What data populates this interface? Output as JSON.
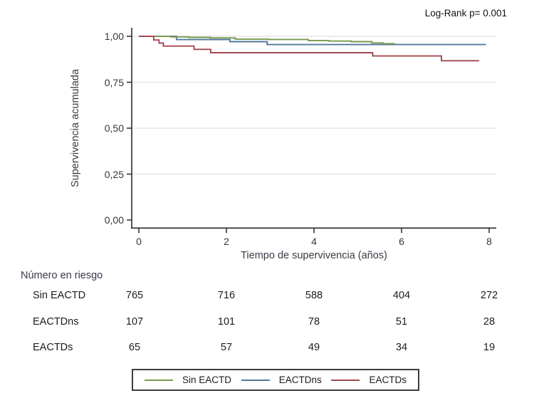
{
  "annotation": {
    "log_rank": "Log-Rank p= 0.001"
  },
  "chart_data": {
    "type": "line",
    "subtype": "kaplan-meier-step",
    "xlabel": "Tiempo de supervivencia (años)",
    "ylabel": "Supervivencia acumulada",
    "xlim": [
      0,
      8.2
    ],
    "ylim": [
      0,
      1.04
    ],
    "grid": "horizontal",
    "x_ticks": [
      {
        "label": "0",
        "v": 0
      },
      {
        "label": "2",
        "v": 2
      },
      {
        "label": "4",
        "v": 4
      },
      {
        "label": "6",
        "v": 6
      },
      {
        "label": "8",
        "v": 8
      }
    ],
    "y_ticks": [
      {
        "label": "1,00",
        "v": 1.0
      },
      {
        "label": "0,75",
        "v": 0.75
      },
      {
        "label": "0,50",
        "v": 0.5
      },
      {
        "label": "0,25",
        "v": 0.25
      },
      {
        "label": "0,00",
        "v": 0.0
      }
    ],
    "series": [
      {
        "name": "EACTDns",
        "color": "#54789B",
        "points": [
          [
            0,
            1.0
          ],
          [
            0.86,
            0.982
          ],
          [
            2.08,
            0.971
          ],
          [
            2.93,
            0.955
          ],
          [
            7.93,
            0.955
          ]
        ]
      },
      {
        "name": "Sin EACTD",
        "color": "#78994F",
        "points": [
          [
            0,
            1.0
          ],
          [
            0.73,
            0.997
          ],
          [
            1.14,
            0.994
          ],
          [
            1.63,
            0.991
          ],
          [
            2.2,
            0.985
          ],
          [
            2.95,
            0.983
          ],
          [
            3.87,
            0.977
          ],
          [
            4.34,
            0.974
          ],
          [
            4.85,
            0.971
          ],
          [
            5.32,
            0.964
          ],
          [
            5.58,
            0.96
          ],
          [
            5.85,
            0.96
          ]
        ]
      },
      {
        "name": "EACTDs",
        "color": "#A3484F",
        "points": [
          [
            0,
            1.0
          ],
          [
            0.34,
            0.98
          ],
          [
            0.46,
            0.963
          ],
          [
            0.56,
            0.947
          ],
          [
            1.26,
            0.929
          ],
          [
            1.64,
            0.911
          ],
          [
            5.34,
            0.893
          ],
          [
            6.91,
            0.867
          ],
          [
            7.77,
            0.867
          ]
        ]
      }
    ],
    "legend": {
      "position": "bottom",
      "entries": [
        {
          "label": "Sin EACTD",
          "color": "#78994F"
        },
        {
          "label": "EACTDns",
          "color": "#54789B"
        },
        {
          "label": "EACTDs",
          "color": "#A3484F"
        }
      ]
    },
    "risk_table": {
      "title": "Número en riesgo",
      "time_points": [
        0,
        2,
        4,
        6,
        8
      ],
      "rows": [
        {
          "label": "Sin EACTD",
          "values": [
            "765",
            "716",
            "588",
            "404",
            "272"
          ]
        },
        {
          "label": "EACTDns",
          "values": [
            "107",
            "101",
            "78",
            "51",
            "28"
          ]
        },
        {
          "label": "EACTDs",
          "values": [
            "65",
            "57",
            "49",
            "34",
            "19"
          ]
        }
      ]
    }
  },
  "colors": {
    "axis": "#2a2a2a",
    "gridline": "#e6e6e6",
    "tick_text": "#34343f"
  }
}
